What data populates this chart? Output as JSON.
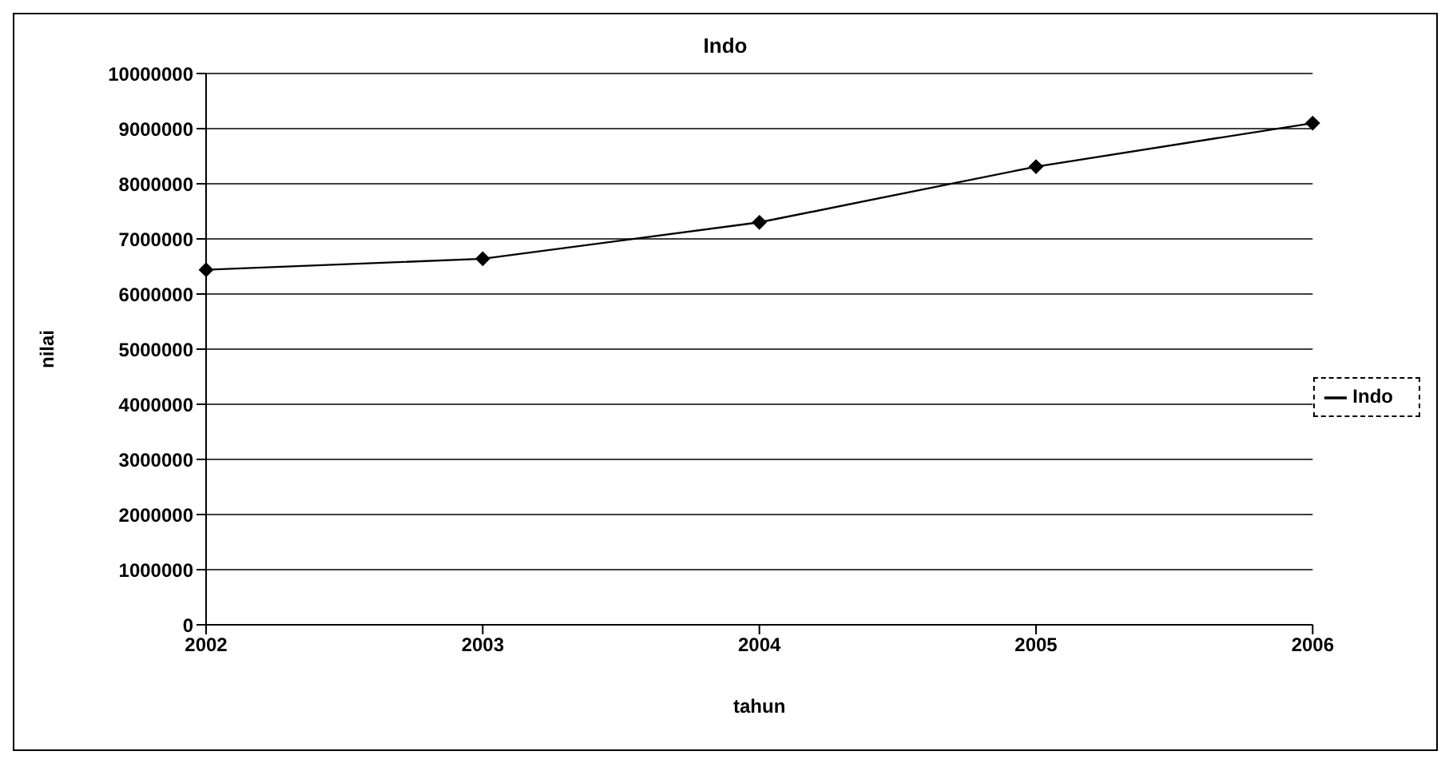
{
  "chart_data": {
    "type": "line",
    "title": "Indo",
    "xlabel": "tahun",
    "ylabel": "nilai",
    "categories": [
      "2002",
      "2003",
      "2004",
      "2005",
      "2006"
    ],
    "series": [
      {
        "name": "Indo",
        "color": "#000000",
        "values": [
          6440000,
          6640000,
          7300000,
          8310000,
          9100000
        ]
      }
    ],
    "ylim": [
      0,
      10000000
    ],
    "yticks": [
      0,
      1000000,
      2000000,
      3000000,
      4000000,
      5000000,
      6000000,
      7000000,
      8000000,
      9000000,
      10000000
    ],
    "grid": "y",
    "legend": "right",
    "marker": "diamond",
    "line_style": "solid"
  }
}
